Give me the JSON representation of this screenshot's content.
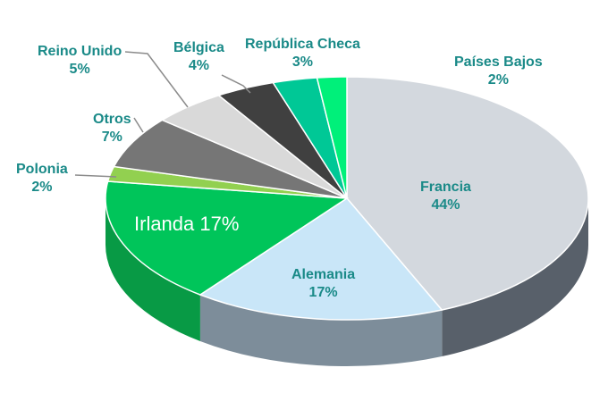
{
  "chart_data": {
    "type": "pie",
    "title": "",
    "slices": [
      {
        "name": "Francia",
        "value": 44,
        "label_pct": "44%",
        "color": "#d3d8de",
        "side": "#58606a"
      },
      {
        "name": "Alemania",
        "value": 17,
        "label_pct": "17%",
        "color": "#c9e6f8",
        "side": "#7d8d9a"
      },
      {
        "name": "Irlanda",
        "value": 17,
        "label_pct": "17%",
        "color": "#00c55a",
        "side": "#089a45"
      },
      {
        "name": "Polonia",
        "value": 2,
        "label_pct": "2%",
        "color": "#92d050",
        "side": "#6aa03a"
      },
      {
        "name": "Otros",
        "value": 7,
        "label_pct": "7%",
        "color": "#767676",
        "side": "#505050"
      },
      {
        "name": "Reino Unido",
        "value": 5,
        "label_pct": "5%",
        "color": "#d9d9d9",
        "side": "#a6a6a6"
      },
      {
        "name": "Bélgica",
        "value": 4,
        "label_pct": "4%",
        "color": "#404040",
        "side": "#262626"
      },
      {
        "name": "República Checa",
        "value": 3,
        "label_pct": "3%",
        "color": "#00c896",
        "side": "#00926e"
      },
      {
        "name": "Países Bajos",
        "value": 2,
        "label_pct": "2%",
        "color": "#00f07a",
        "side": "#00b85c"
      }
    ],
    "label_color": "#1a8a88",
    "highlight_label_color": "#ffffff"
  }
}
